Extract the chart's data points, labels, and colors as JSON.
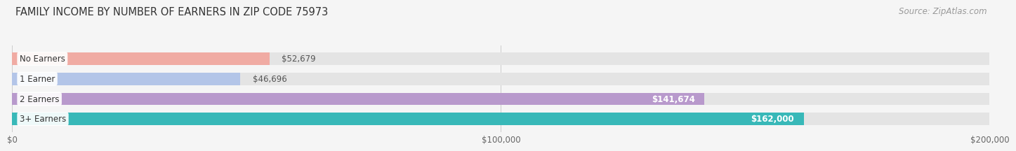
{
  "title": "FAMILY INCOME BY NUMBER OF EARNERS IN ZIP CODE 75973",
  "source": "Source: ZipAtlas.com",
  "categories": [
    "No Earners",
    "1 Earner",
    "2 Earners",
    "3+ Earners"
  ],
  "values": [
    52679,
    46696,
    141674,
    162000
  ],
  "bar_colors": [
    "#f0aba3",
    "#b3c5e8",
    "#b899cc",
    "#38b8b8"
  ],
  "value_labels": [
    "$52,679",
    "$46,696",
    "$141,674",
    "$162,000"
  ],
  "xlim": [
    0,
    200000
  ],
  "xticks": [
    0,
    100000,
    200000
  ],
  "xtick_labels": [
    "$0",
    "$100,000",
    "$200,000"
  ],
  "background_color": "#f5f5f5",
  "bar_bg_color": "#e4e4e4",
  "title_fontsize": 10.5,
  "source_fontsize": 8.5,
  "label_fontsize": 8.5,
  "value_fontsize": 8.5,
  "tick_fontsize": 8.5,
  "value_inside_color": "white",
  "value_outside_color": "#555555",
  "inside_threshold": 80000
}
